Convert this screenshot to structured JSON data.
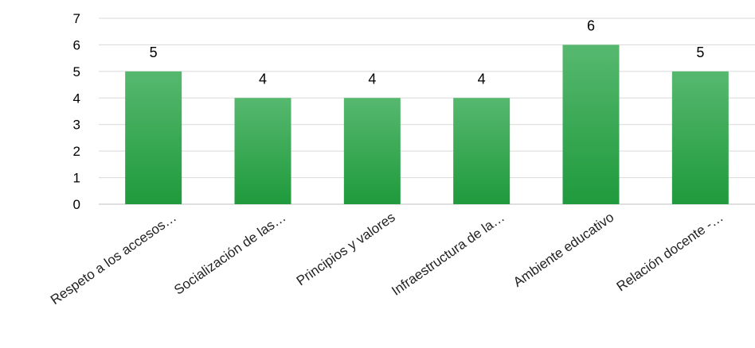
{
  "chart_data": {
    "type": "bar",
    "categories": [
      "Respeto a los accesos…",
      "Socialización de las…",
      "Principios y valores",
      "Infraestructura de la…",
      "Ambiente educativo",
      "Relación docente -…"
    ],
    "values": [
      5,
      4,
      4,
      4,
      6,
      5
    ],
    "title": "",
    "xlabel": "",
    "ylabel": "",
    "ylim": [
      0,
      7
    ],
    "yticks": [
      "0",
      "1",
      "2",
      "3",
      "4",
      "5",
      "6",
      "7"
    ],
    "data_labels": [
      "5",
      "4",
      "4",
      "4",
      "6",
      "5"
    ],
    "grid": true,
    "legend": "none",
    "bar_color_top": "#56b86f",
    "bar_color_bottom": "#1f9a3c"
  }
}
